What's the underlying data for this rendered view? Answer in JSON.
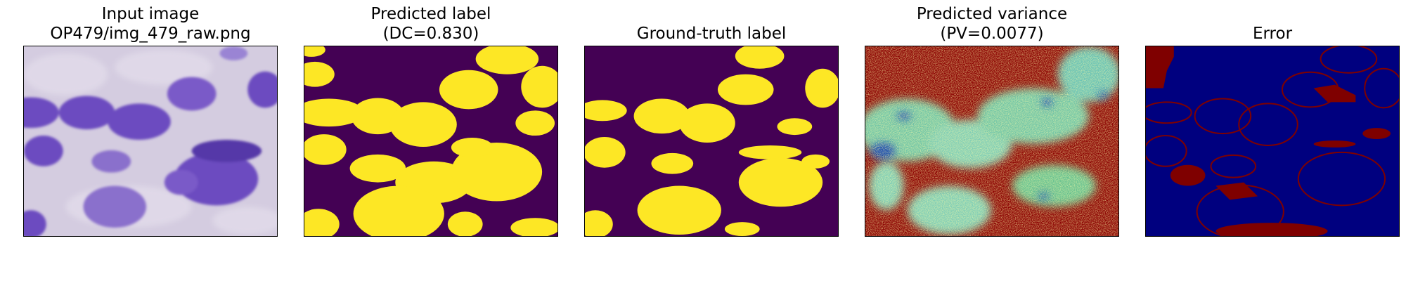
{
  "panels": [
    {
      "name": "input-image",
      "title_lines": [
        "Input image",
        "OP479/img_479_raw.png"
      ]
    },
    {
      "name": "predicted-label",
      "title_lines": [
        "Predicted label",
        "(DC=0.830)"
      ]
    },
    {
      "name": "ground-truth-label",
      "title_lines": [
        "Ground-truth label"
      ]
    },
    {
      "name": "predicted-variance",
      "title_lines": [
        "Predicted variance",
        "(PV=0.0077)"
      ]
    },
    {
      "name": "error",
      "title_lines": [
        "Error"
      ]
    }
  ],
  "colors": {
    "label_background": "#440154",
    "label_foreground": "#fde725",
    "error_background": "#00007f",
    "error_foreground": "#7f0000",
    "variance_high": "#8b0000",
    "stain_background": "#cfc6dc",
    "nucleus": "#6a4bb8"
  }
}
